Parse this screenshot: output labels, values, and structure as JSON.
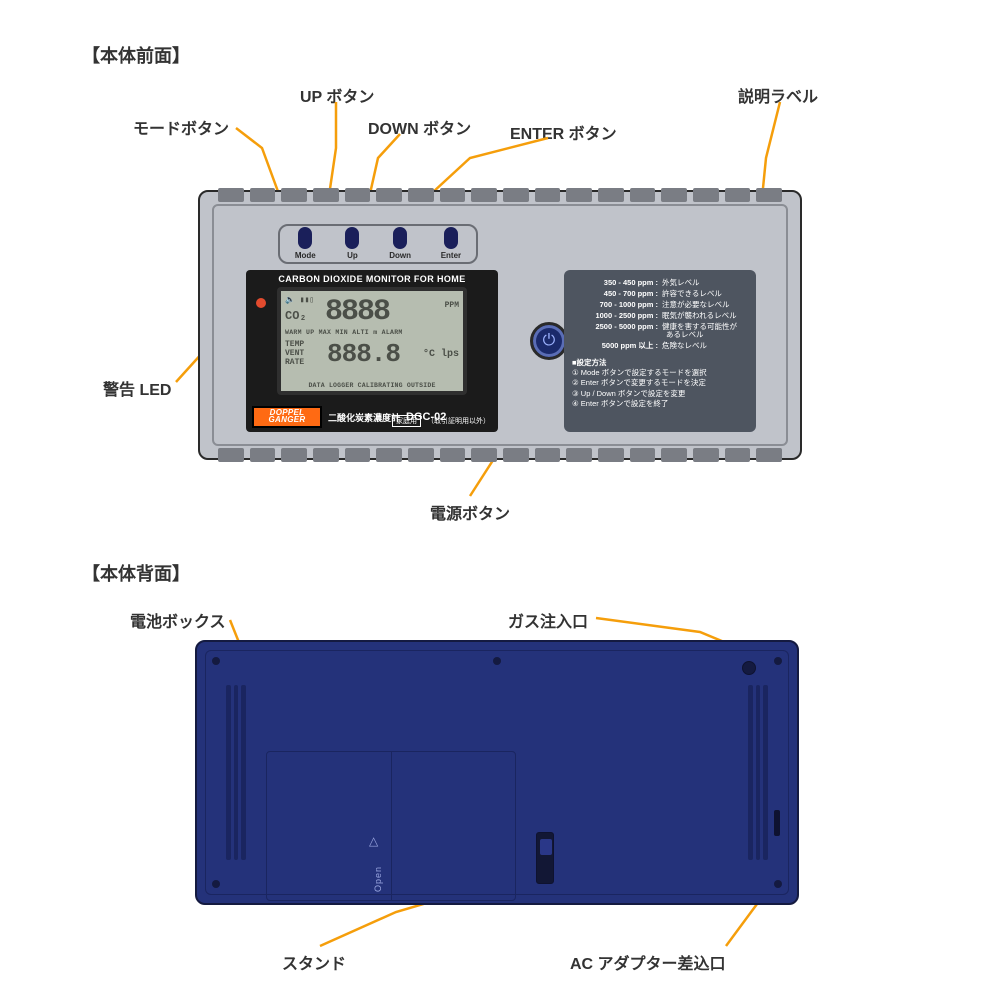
{
  "colors": {
    "callout_line": "#f59e0b",
    "callout_dot": "#f59e0b",
    "device_front_bg": "#c0c3ca",
    "device_back_bg": "#24327a",
    "lcd_bg": "#b6bdb0",
    "brand_bg": "#ff6a13",
    "info_label_bg": "#4e5560",
    "led_color": "#e34b2e",
    "power_ring": "#5a6db5",
    "text": "#333333"
  },
  "sections": {
    "front_title": "【本体前面】",
    "back_title": "【本体背面】"
  },
  "callouts": {
    "mode_btn": "モードボタン",
    "up_btn": "UP ボタン",
    "down_btn": "DOWN ボタン",
    "enter_btn": "ENTER ボタン",
    "info_label": "説明ラベル",
    "warn_led": "警告 LED",
    "power_btn": "電源ボタン",
    "battery_box": "電池ボックス",
    "gas_inlet": "ガス注入口",
    "stand": "スタンド",
    "ac_jack": "AC アダプター差込口"
  },
  "front": {
    "buttons": {
      "mode": "Mode",
      "up": "Up",
      "down": "Down",
      "enter": "Enter"
    },
    "lcd": {
      "title": "CARBON DIOXIDE MONITOR FOR HOME",
      "co2": "CO₂",
      "big": "8888",
      "ppm": "PPM",
      "mid": "WARM UP  MAX  MIN  ALTI  m   ALARM",
      "left": "TEMP\nVENT\nRATE",
      "small": "888.8",
      "unit": "°C  lps",
      "bottom": "DATA LOGGER CALIBRATING OUTSIDE",
      "icons": "🔈  ▮▮▯"
    },
    "brand": {
      "line1": "DOPPEL",
      "line2": "GANGER",
      "model_label": "二酸化炭素濃度計",
      "model_num": "DGC-02",
      "home_use": "家庭用",
      "note": "（取引証明用以外）"
    },
    "info": {
      "levels": [
        {
          "range": "350 -  450 ppm :",
          "desc": "外気レベル"
        },
        {
          "range": "450 -  700 ppm :",
          "desc": "許容できるレベル"
        },
        {
          "range": "700 - 1000 ppm :",
          "desc": "注意が必要なレベル"
        },
        {
          "range": "1000 - 2500 ppm :",
          "desc": "眠気が襲われるレベル"
        },
        {
          "range": "2500 - 5000 ppm :",
          "desc": "健康を害する可能性が"
        },
        {
          "range": "",
          "desc": "あるレベル",
          "indent": true
        },
        {
          "range": "5000 ppm 以上 :",
          "desc": "危険なレベル"
        }
      ],
      "sub_title": "■設定方法",
      "sub_lines": [
        "① Mode ボタンで設定するモードを選択",
        "② Enter ボタンで変更するモードを決定",
        "③ Up / Down ボタンで設定を変更",
        "④ Enter ボタンで設定を終了"
      ]
    }
  },
  "back": {
    "open": "Open"
  }
}
